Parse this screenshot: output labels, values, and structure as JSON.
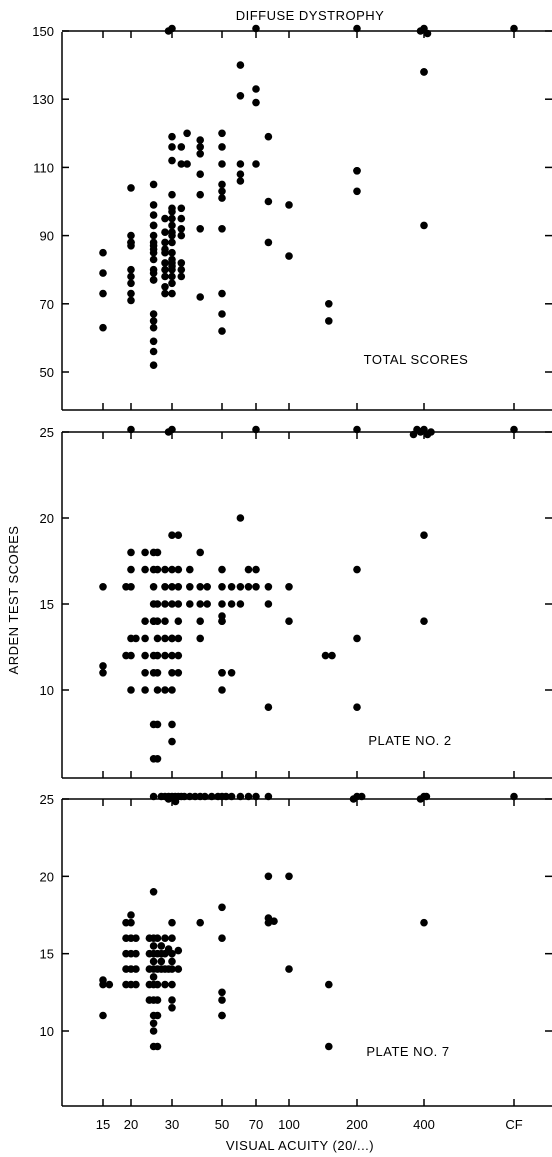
{
  "title": "DIFFUSE DYSTROPHY",
  "ylabel": "ARDEN TEST SCORES",
  "xlabel": "VISUAL ACUITY (20/...)",
  "colors": {
    "marker": "#000000",
    "axes": "#000000",
    "background": "#ffffff"
  },
  "chart_data": [
    {
      "type": "scatter",
      "annotation": "TOTAL SCORES",
      "x_ticks": [
        "15",
        "20",
        "30",
        "50",
        "70",
        "100",
        "200",
        "400",
        "CF"
      ],
      "y_ticks": [
        "50",
        "70",
        "90",
        "110",
        "130",
        "150"
      ],
      "ylim": [
        45,
        150
      ],
      "xscale": "log",
      "grid": false,
      "points": [
        [
          15,
          85
        ],
        [
          15,
          79
        ],
        [
          15,
          73
        ],
        [
          15,
          63
        ],
        [
          20,
          104
        ],
        [
          20,
          90
        ],
        [
          20,
          88
        ],
        [
          20,
          88
        ],
        [
          20,
          87
        ],
        [
          20,
          80
        ],
        [
          20,
          78
        ],
        [
          20,
          76
        ],
        [
          20,
          73
        ],
        [
          20,
          71
        ],
        [
          25,
          105
        ],
        [
          25,
          99
        ],
        [
          25,
          96
        ],
        [
          25,
          93
        ],
        [
          25,
          93
        ],
        [
          25,
          90
        ],
        [
          25,
          88
        ],
        [
          25,
          87
        ],
        [
          25,
          86
        ],
        [
          25,
          85
        ],
        [
          25,
          83
        ],
        [
          25,
          80
        ],
        [
          25,
          79
        ],
        [
          25,
          77
        ],
        [
          25,
          77
        ],
        [
          25,
          67
        ],
        [
          25,
          65
        ],
        [
          25,
          63
        ],
        [
          25,
          59
        ],
        [
          25,
          56
        ],
        [
          25,
          52
        ],
        [
          28,
          95
        ],
        [
          28,
          91
        ],
        [
          28,
          88
        ],
        [
          28,
          86
        ],
        [
          28,
          85
        ],
        [
          28,
          82
        ],
        [
          28,
          80
        ],
        [
          28,
          78
        ],
        [
          28,
          75
        ],
        [
          28,
          73
        ],
        [
          30,
          119
        ],
        [
          30,
          116
        ],
        [
          30,
          112
        ],
        [
          30,
          102
        ],
        [
          30,
          98
        ],
        [
          30,
          97
        ],
        [
          30,
          95
        ],
        [
          30,
          93
        ],
        [
          30,
          91
        ],
        [
          30,
          90
        ],
        [
          30,
          88
        ],
        [
          30,
          85
        ],
        [
          30,
          83
        ],
        [
          30,
          82
        ],
        [
          30,
          81
        ],
        [
          30,
          80
        ],
        [
          30,
          78
        ],
        [
          30,
          76
        ],
        [
          30,
          73
        ],
        [
          33,
          116
        ],
        [
          33,
          111
        ],
        [
          33,
          98
        ],
        [
          33,
          95
        ],
        [
          33,
          92
        ],
        [
          33,
          90
        ],
        [
          33,
          82
        ],
        [
          33,
          80
        ],
        [
          33,
          78
        ],
        [
          35,
          120
        ],
        [
          35,
          111
        ],
        [
          40,
          118
        ],
        [
          40,
          116
        ],
        [
          40,
          114
        ],
        [
          40,
          108
        ],
        [
          40,
          102
        ],
        [
          40,
          92
        ],
        [
          40,
          72
        ],
        [
          50,
          120
        ],
        [
          50,
          116
        ],
        [
          50,
          111
        ],
        [
          50,
          105
        ],
        [
          50,
          103
        ],
        [
          50,
          101
        ],
        [
          50,
          92
        ],
        [
          50,
          73
        ],
        [
          50,
          67
        ],
        [
          50,
          62
        ],
        [
          60,
          140
        ],
        [
          60,
          131
        ],
        [
          60,
          111
        ],
        [
          60,
          108
        ],
        [
          60,
          106
        ],
        [
          70,
          133
        ],
        [
          70,
          129
        ],
        [
          70,
          111
        ],
        [
          80,
          119
        ],
        [
          80,
          100
        ],
        [
          80,
          88
        ],
        [
          100,
          99
        ],
        [
          100,
          84
        ],
        [
          150,
          70
        ],
        [
          150,
          65
        ],
        [
          200,
          109
        ],
        [
          200,
          109
        ],
        [
          200,
          103
        ],
        [
          400,
          138
        ],
        [
          400,
          138
        ],
        [
          400,
          93
        ]
      ],
      "ceiling_points": [
        30,
        30,
        70,
        200,
        400,
        400,
        400,
        "CF"
      ]
    },
    {
      "type": "scatter",
      "annotation": "PLATE NO. 2",
      "x_ticks": [
        "15",
        "20",
        "30",
        "50",
        "70",
        "100",
        "200",
        "400",
        "CF"
      ],
      "y_ticks": [
        "10",
        "15",
        "20",
        "25"
      ],
      "ylim": [
        5,
        25
      ],
      "xscale": "log",
      "grid": false,
      "points": [
        [
          15,
          16
        ],
        [
          15,
          11.4
        ],
        [
          15,
          11
        ],
        [
          19,
          16
        ],
        [
          19,
          12
        ],
        [
          20,
          18
        ],
        [
          20,
          17
        ],
        [
          20,
          16
        ],
        [
          20,
          13
        ],
        [
          20,
          12
        ],
        [
          20,
          10
        ],
        [
          21,
          13
        ],
        [
          23,
          18
        ],
        [
          23,
          17
        ],
        [
          23,
          14
        ],
        [
          23,
          13
        ],
        [
          23,
          12
        ],
        [
          23,
          11
        ],
        [
          23,
          10
        ],
        [
          25,
          18
        ],
        [
          25,
          17
        ],
        [
          25,
          16
        ],
        [
          25,
          15
        ],
        [
          25,
          14
        ],
        [
          25,
          14
        ],
        [
          25,
          12
        ],
        [
          25,
          11
        ],
        [
          25,
          8
        ],
        [
          25,
          6
        ],
        [
          26,
          18
        ],
        [
          26,
          17
        ],
        [
          26,
          15
        ],
        [
          26,
          14
        ],
        [
          26,
          13
        ],
        [
          26,
          12
        ],
        [
          26,
          11
        ],
        [
          26,
          10
        ],
        [
          26,
          8
        ],
        [
          26,
          6
        ],
        [
          28,
          17
        ],
        [
          28,
          16
        ],
        [
          28,
          15
        ],
        [
          28,
          14
        ],
        [
          28,
          13
        ],
        [
          28,
          12
        ],
        [
          28,
          10
        ],
        [
          30,
          19
        ],
        [
          30,
          17
        ],
        [
          30,
          16
        ],
        [
          30,
          15
        ],
        [
          30,
          13
        ],
        [
          30,
          13
        ],
        [
          30,
          12
        ],
        [
          30,
          11
        ],
        [
          30,
          10
        ],
        [
          30,
          8
        ],
        [
          30,
          7
        ],
        [
          32,
          19
        ],
        [
          32,
          17
        ],
        [
          32,
          16
        ],
        [
          32,
          15
        ],
        [
          32,
          14
        ],
        [
          32,
          13
        ],
        [
          32,
          12
        ],
        [
          32,
          11
        ],
        [
          36,
          17
        ],
        [
          36,
          16
        ],
        [
          36,
          15
        ],
        [
          40,
          18
        ],
        [
          40,
          16
        ],
        [
          40,
          15
        ],
        [
          40,
          14
        ],
        [
          40,
          13
        ],
        [
          43,
          16
        ],
        [
          43,
          15
        ],
        [
          50,
          17
        ],
        [
          50,
          16
        ],
        [
          50,
          15
        ],
        [
          50,
          14.3
        ],
        [
          50,
          14
        ],
        [
          50,
          14
        ],
        [
          50,
          11
        ],
        [
          50,
          11
        ],
        [
          50,
          10
        ],
        [
          55,
          16
        ],
        [
          55,
          15
        ],
        [
          55,
          11
        ],
        [
          60,
          20
        ],
        [
          60,
          16
        ],
        [
          60,
          15
        ],
        [
          65,
          17
        ],
        [
          65,
          16
        ],
        [
          70,
          17
        ],
        [
          70,
          16
        ],
        [
          80,
          16
        ],
        [
          80,
          15
        ],
        [
          80,
          9
        ],
        [
          100,
          16
        ],
        [
          100,
          14
        ],
        [
          145,
          12
        ],
        [
          155,
          12
        ],
        [
          200,
          17
        ],
        [
          200,
          13
        ],
        [
          200,
          9
        ],
        [
          400,
          19
        ],
        [
          400,
          14
        ]
      ],
      "ceiling_points": [
        20,
        30,
        30,
        70,
        200,
        400,
        400,
        400,
        400,
        400,
        400,
        "CF"
      ]
    },
    {
      "type": "scatter",
      "annotation": "PLATE NO. 7",
      "x_ticks": [
        "15",
        "20",
        "30",
        "50",
        "70",
        "100",
        "200",
        "400",
        "CF"
      ],
      "y_ticks": [
        "10",
        "15",
        "20",
        "25"
      ],
      "ylim": [
        8,
        25
      ],
      "xscale": "log",
      "grid": false,
      "points": [
        [
          15,
          13.3
        ],
        [
          15,
          13
        ],
        [
          15,
          11
        ],
        [
          16,
          13
        ],
        [
          19,
          17
        ],
        [
          19,
          16
        ],
        [
          19,
          15
        ],
        [
          19,
          14
        ],
        [
          19,
          13
        ],
        [
          20,
          17.5
        ],
        [
          20,
          17
        ],
        [
          20,
          16
        ],
        [
          20,
          15
        ],
        [
          20,
          14
        ],
        [
          20,
          13
        ],
        [
          21,
          16
        ],
        [
          21,
          15
        ],
        [
          21,
          14
        ],
        [
          21,
          13
        ],
        [
          24,
          16
        ],
        [
          24,
          15
        ],
        [
          24,
          14
        ],
        [
          24,
          13
        ],
        [
          24,
          12
        ],
        [
          25,
          19
        ],
        [
          25,
          16
        ],
        [
          25,
          15.5
        ],
        [
          25,
          15
        ],
        [
          25,
          14.5
        ],
        [
          25,
          14
        ],
        [
          25,
          13.5
        ],
        [
          25,
          13
        ],
        [
          25,
          12
        ],
        [
          25,
          11
        ],
        [
          25,
          10.5
        ],
        [
          25,
          10
        ],
        [
          25,
          9
        ],
        [
          26,
          16
        ],
        [
          26,
          15
        ],
        [
          26,
          14
        ],
        [
          26,
          13
        ],
        [
          26,
          12
        ],
        [
          26,
          11
        ],
        [
          26,
          9
        ],
        [
          27,
          15.5
        ],
        [
          27,
          15
        ],
        [
          27,
          14.5
        ],
        [
          27,
          14
        ],
        [
          28,
          16
        ],
        [
          28,
          15
        ],
        [
          28,
          14
        ],
        [
          28,
          13
        ],
        [
          29,
          15.3
        ],
        [
          29,
          14
        ],
        [
          30,
          17
        ],
        [
          30,
          16
        ],
        [
          30,
          15
        ],
        [
          30,
          14.5
        ],
        [
          30,
          14
        ],
        [
          30,
          13
        ],
        [
          30,
          12
        ],
        [
          30,
          11.5
        ],
        [
          32,
          15.2
        ],
        [
          32,
          14
        ],
        [
          40,
          17
        ],
        [
          50,
          18
        ],
        [
          50,
          16
        ],
        [
          50,
          12.5
        ],
        [
          50,
          12
        ],
        [
          50,
          11
        ],
        [
          50,
          11
        ],
        [
          80,
          20
        ],
        [
          80,
          17.3
        ],
        [
          80,
          17
        ],
        [
          85,
          17.1
        ],
        [
          100,
          20
        ],
        [
          100,
          14
        ],
        [
          150,
          13
        ],
        [
          150,
          9
        ],
        [
          400,
          17
        ]
      ],
      "ceiling_points": [
        25,
        27,
        28,
        29,
        30,
        30,
        30,
        31,
        32,
        33,
        34,
        36,
        38,
        40,
        42,
        45,
        48,
        50,
        52,
        55,
        60,
        65,
        70,
        80,
        200,
        200,
        210,
        400,
        400,
        410,
        "CF"
      ]
    }
  ]
}
